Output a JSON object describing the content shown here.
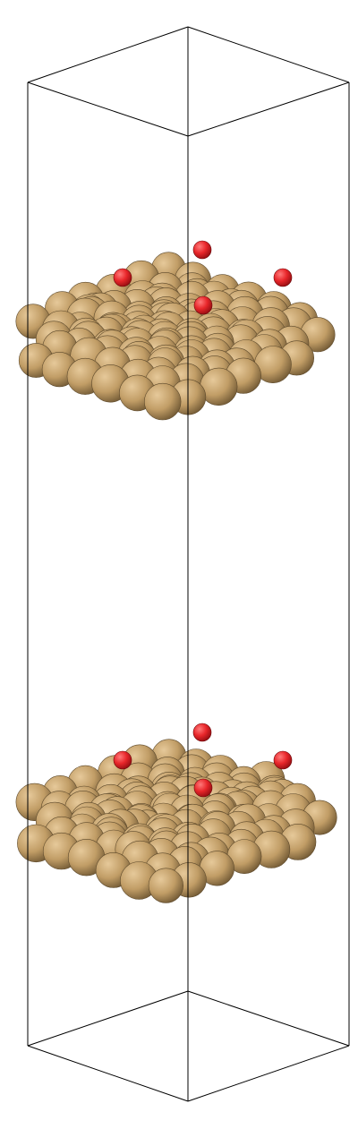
{
  "scene": {
    "background": "#ffffff",
    "cell_line_color": "#000000",
    "colors": {
      "metal": "#c8a46e",
      "metal_dark": "#6f5733",
      "oxygen": "#e8262a",
      "oxygen_dark": "#8e0c10"
    },
    "slabs": [
      {
        "name": "upper-slab",
        "adsorbate_count": 4
      },
      {
        "name": "lower-slab",
        "adsorbate_count": 4
      }
    ]
  }
}
